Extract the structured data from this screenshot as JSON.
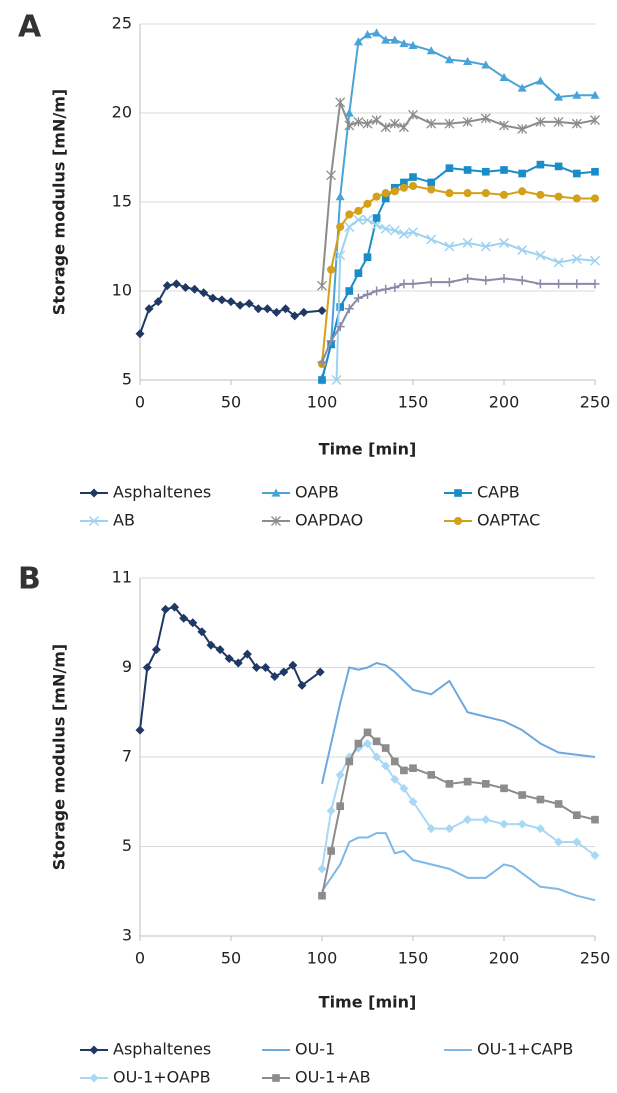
{
  "chart_data": [
    {
      "type": "line",
      "panel_label": "A",
      "x_label": "Time [min]",
      "y_label": "Storage modulus [mN/m]",
      "xlim": [
        0,
        250
      ],
      "xticks": [
        0,
        50,
        100,
        150,
        200,
        250
      ],
      "ylim": [
        5,
        25
      ],
      "yticks": [
        5,
        10,
        15,
        20,
        25
      ],
      "grid": true,
      "series": [
        {
          "name": "Asphaltenes",
          "color": "#1f3864",
          "marker": "diamond",
          "x": [
            0,
            5,
            10,
            15,
            20,
            25,
            30,
            35,
            40,
            45,
            50,
            55,
            60,
            65,
            70,
            75,
            80,
            85,
            90,
            100
          ],
          "values": [
            7.6,
            9.0,
            9.4,
            10.3,
            10.4,
            10.2,
            10.1,
            9.9,
            9.6,
            9.5,
            9.4,
            9.2,
            9.3,
            9.0,
            9.0,
            8.8,
            9.0,
            8.6,
            8.8,
            8.9
          ]
        },
        {
          "name": "OAPB",
          "color": "#4aa3d8",
          "marker": "triangle",
          "x": [
            100,
            105,
            110,
            115,
            120,
            125,
            130,
            135,
            140,
            145,
            150,
            160,
            170,
            180,
            190,
            200,
            210,
            220,
            230,
            240,
            250
          ],
          "values": [
            5.1,
            7.0,
            15.3,
            20.0,
            24.0,
            24.4,
            24.5,
            24.1,
            24.1,
            23.9,
            23.8,
            23.5,
            23.0,
            22.9,
            22.7,
            22.0,
            21.4,
            21.8,
            20.9,
            21.0,
            21.0
          ]
        },
        {
          "name": "CAPB",
          "color": "#1a8cc8",
          "marker": "square",
          "x": [
            100,
            105,
            110,
            115,
            120,
            125,
            130,
            135,
            140,
            145,
            150,
            160,
            170,
            180,
            190,
            200,
            210,
            220,
            230,
            240,
            250
          ],
          "values": [
            5.0,
            7.0,
            9.1,
            10.0,
            11.0,
            11.9,
            14.1,
            15.2,
            15.8,
            16.1,
            16.4,
            16.1,
            16.9,
            16.8,
            16.7,
            16.8,
            16.6,
            17.1,
            17.0,
            16.6,
            16.7
          ]
        },
        {
          "name": "AB",
          "color": "#9dd2f0",
          "marker": "x",
          "x": [
            108,
            110,
            115,
            120,
            125,
            130,
            135,
            140,
            145,
            150,
            160,
            170,
            180,
            190,
            200,
            210,
            220,
            230,
            240,
            250
          ],
          "values": [
            5.0,
            12.0,
            13.6,
            14.0,
            14.0,
            13.7,
            13.5,
            13.4,
            13.2,
            13.3,
            12.9,
            12.5,
            12.7,
            12.5,
            12.7,
            12.3,
            12.0,
            11.6,
            11.8,
            11.7
          ]
        },
        {
          "name": "OAPDAO",
          "color": "#8c8c8c",
          "marker": "star",
          "x": [
            100,
            105,
            110,
            115,
            120,
            125,
            130,
            135,
            140,
            145,
            150,
            160,
            170,
            180,
            190,
            200,
            210,
            220,
            230,
            240,
            250
          ],
          "values": [
            10.3,
            16.5,
            20.6,
            19.3,
            19.5,
            19.4,
            19.6,
            19.2,
            19.4,
            19.2,
            19.9,
            19.4,
            19.4,
            19.5,
            19.7,
            19.3,
            19.1,
            19.5,
            19.5,
            19.4,
            19.6
          ]
        },
        {
          "name": "OAPTAC",
          "color": "#d4a017",
          "marker": "circle",
          "x": [
            100,
            105,
            110,
            115,
            120,
            125,
            130,
            135,
            140,
            145,
            150,
            160,
            170,
            180,
            190,
            200,
            210,
            220,
            230,
            240,
            250
          ],
          "values": [
            5.9,
            11.2,
            13.6,
            14.3,
            14.5,
            14.9,
            15.3,
            15.5,
            15.6,
            15.8,
            15.9,
            15.7,
            15.5,
            15.5,
            15.5,
            15.4,
            15.6,
            15.4,
            15.3,
            15.2,
            15.2
          ]
        },
        {
          "name": null,
          "color": "#8a8aa8",
          "marker": "plus",
          "x": [
            100,
            105,
            110,
            115,
            120,
            125,
            130,
            135,
            140,
            145,
            150,
            160,
            170,
            180,
            190,
            200,
            210,
            220,
            230,
            240,
            250
          ],
          "values": [
            6.0,
            7.2,
            8.0,
            9.0,
            9.6,
            9.8,
            10.0,
            10.1,
            10.2,
            10.4,
            10.4,
            10.5,
            10.5,
            10.7,
            10.6,
            10.7,
            10.6,
            10.4,
            10.4,
            10.4,
            10.4
          ]
        }
      ]
    },
    {
      "type": "line",
      "panel_label": "B",
      "x_label": "Time [min]",
      "y_label": "Storage modulus [mN/m]",
      "xlim": [
        0,
        250
      ],
      "xticks": [
        0,
        50,
        100,
        150,
        200,
        250
      ],
      "ylim": [
        3,
        11
      ],
      "yticks": [
        3,
        5,
        7,
        9,
        11
      ],
      "grid": true,
      "series": [
        {
          "name": "Asphaltenes",
          "color": "#1f3864",
          "marker": "diamond",
          "x": [
            0,
            4,
            9,
            14,
            19,
            24,
            29,
            34,
            39,
            44,
            49,
            54,
            59,
            64,
            69,
            74,
            79,
            84,
            89,
            99
          ],
          "values": [
            7.6,
            9.0,
            9.4,
            10.3,
            10.35,
            10.1,
            10.0,
            9.8,
            9.5,
            9.4,
            9.2,
            9.1,
            9.3,
            9.0,
            9.0,
            8.8,
            8.9,
            9.05,
            8.6,
            8.9
          ]
        },
        {
          "name": "OU-1",
          "color": "#6fa8dc",
          "marker": "none",
          "x": [
            100,
            105,
            110,
            115,
            120,
            125,
            130,
            135,
            140,
            145,
            150,
            160,
            170,
            180,
            190,
            200,
            210,
            220,
            230,
            240,
            250
          ],
          "values": [
            6.4,
            7.3,
            8.2,
            9.0,
            8.95,
            9.0,
            9.1,
            9.05,
            8.9,
            8.7,
            8.5,
            8.4,
            8.7,
            8.0,
            7.9,
            7.8,
            7.6,
            7.3,
            7.1,
            7.05,
            7.0
          ]
        },
        {
          "name": "OU-1+CAPB",
          "color": "#7fb8e6",
          "marker": "none",
          "x": [
            100,
            105,
            110,
            115,
            120,
            125,
            130,
            135,
            140,
            145,
            150,
            160,
            170,
            180,
            190,
            200,
            205,
            210,
            220,
            230,
            240,
            250
          ],
          "values": [
            4.0,
            4.3,
            4.6,
            5.1,
            5.2,
            5.2,
            5.3,
            5.3,
            4.85,
            4.9,
            4.7,
            4.6,
            4.5,
            4.3,
            4.3,
            4.6,
            4.55,
            4.4,
            4.1,
            4.05,
            3.9,
            3.8
          ]
        },
        {
          "name": "OU-1+OAPB",
          "color": "#a9d8f5",
          "marker": "diamond",
          "x": [
            100,
            105,
            110,
            115,
            120,
            125,
            130,
            135,
            140,
            145,
            150,
            160,
            170,
            180,
            190,
            200,
            210,
            220,
            230,
            240,
            250
          ],
          "values": [
            4.5,
            5.8,
            6.6,
            7.0,
            7.2,
            7.3,
            7.0,
            6.8,
            6.5,
            6.3,
            6.0,
            5.4,
            5.4,
            5.6,
            5.6,
            5.5,
            5.5,
            5.4,
            5.1,
            5.1,
            4.8
          ]
        },
        {
          "name": "OU-1+AB",
          "color": "#8c8c8c",
          "marker": "square",
          "x": [
            100,
            105,
            110,
            115,
            120,
            125,
            130,
            135,
            140,
            145,
            150,
            160,
            170,
            180,
            190,
            200,
            210,
            220,
            230,
            240,
            250
          ],
          "values": [
            3.9,
            4.9,
            5.9,
            6.9,
            7.3,
            7.55,
            7.35,
            7.2,
            6.9,
            6.7,
            6.75,
            6.6,
            6.4,
            6.45,
            6.4,
            6.3,
            6.15,
            6.05,
            5.95,
            5.7,
            5.6
          ]
        }
      ]
    }
  ]
}
